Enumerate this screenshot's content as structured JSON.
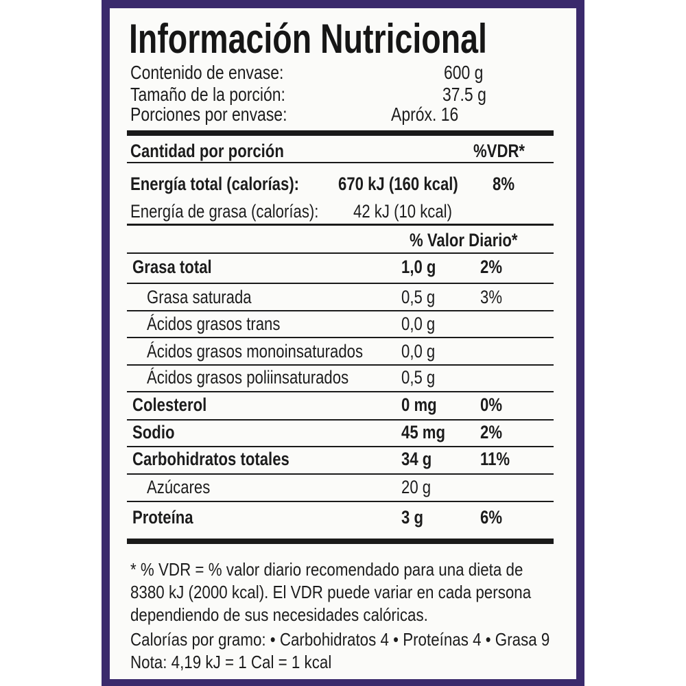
{
  "label": {
    "title": "Información Nutricional",
    "info": [
      {
        "label": "Contenido de envase:",
        "value": "600 g"
      },
      {
        "label": "Tamaño de la porción:",
        "value": "37.5 g"
      },
      {
        "label": "Porciones por envase:",
        "value": "Apróx. 16"
      }
    ],
    "serving_header": {
      "label": "Cantidad por porción",
      "vdr": "%VDR*"
    },
    "energy_total": {
      "label": "Energía total (calorías):",
      "value": "670 kJ (160 kcal)",
      "pct": "8%"
    },
    "energy_fat": {
      "label": "Energía de grasa (calorías):",
      "value": "42 kJ (10 kcal)"
    },
    "daily_value_header": "% Valor Diario*",
    "nutrients": [
      {
        "name": "Grasa total",
        "amount": "1,0 g",
        "pct": "2%",
        "bold": true,
        "indent": false
      },
      {
        "name": "Grasa saturada",
        "amount": "0,5 g",
        "pct": "3%",
        "bold": false,
        "indent": true
      },
      {
        "name": "Ácidos grasos trans",
        "amount": "0,0 g",
        "pct": "",
        "bold": false,
        "indent": true
      },
      {
        "name": "Ácidos grasos monoinsaturados",
        "amount": "0,0 g",
        "pct": "",
        "bold": false,
        "indent": true
      },
      {
        "name": "Ácidos grasos poliinsaturados",
        "amount": "0,5 g",
        "pct": "",
        "bold": false,
        "indent": true
      },
      {
        "name": "Colesterol",
        "amount": "0 mg",
        "pct": "0%",
        "bold": true,
        "indent": false
      },
      {
        "name": "Sodio",
        "amount": "45 mg",
        "pct": "2%",
        "bold": true,
        "indent": false
      },
      {
        "name": "Carbohidratos totales",
        "amount": "34 g",
        "pct": "11%",
        "bold": true,
        "indent": false
      },
      {
        "name": "Azúcares",
        "amount": "20 g",
        "pct": "",
        "bold": false,
        "indent": true
      },
      {
        "name": "Proteína",
        "amount": "3 g",
        "pct": "6%",
        "bold": true,
        "indent": false
      }
    ],
    "footnotes": [
      "* % VDR = % valor diario recomendado para una dieta de",
      "8380 kJ (2000 kcal).  El VDR puede variar en cada persona",
      "dependiendo de sus necesidades calóricas.",
      "Calorías por gramo: • Carbohidratos 4 • Proteínas 4 • Grasa 9",
      "Nota: 4,19 kJ = 1 Cal = 1 kcal"
    ]
  },
  "colors": {
    "frame": "#3a2a6c",
    "panel": "#fbfbf9",
    "text": "#1c1c1c"
  }
}
